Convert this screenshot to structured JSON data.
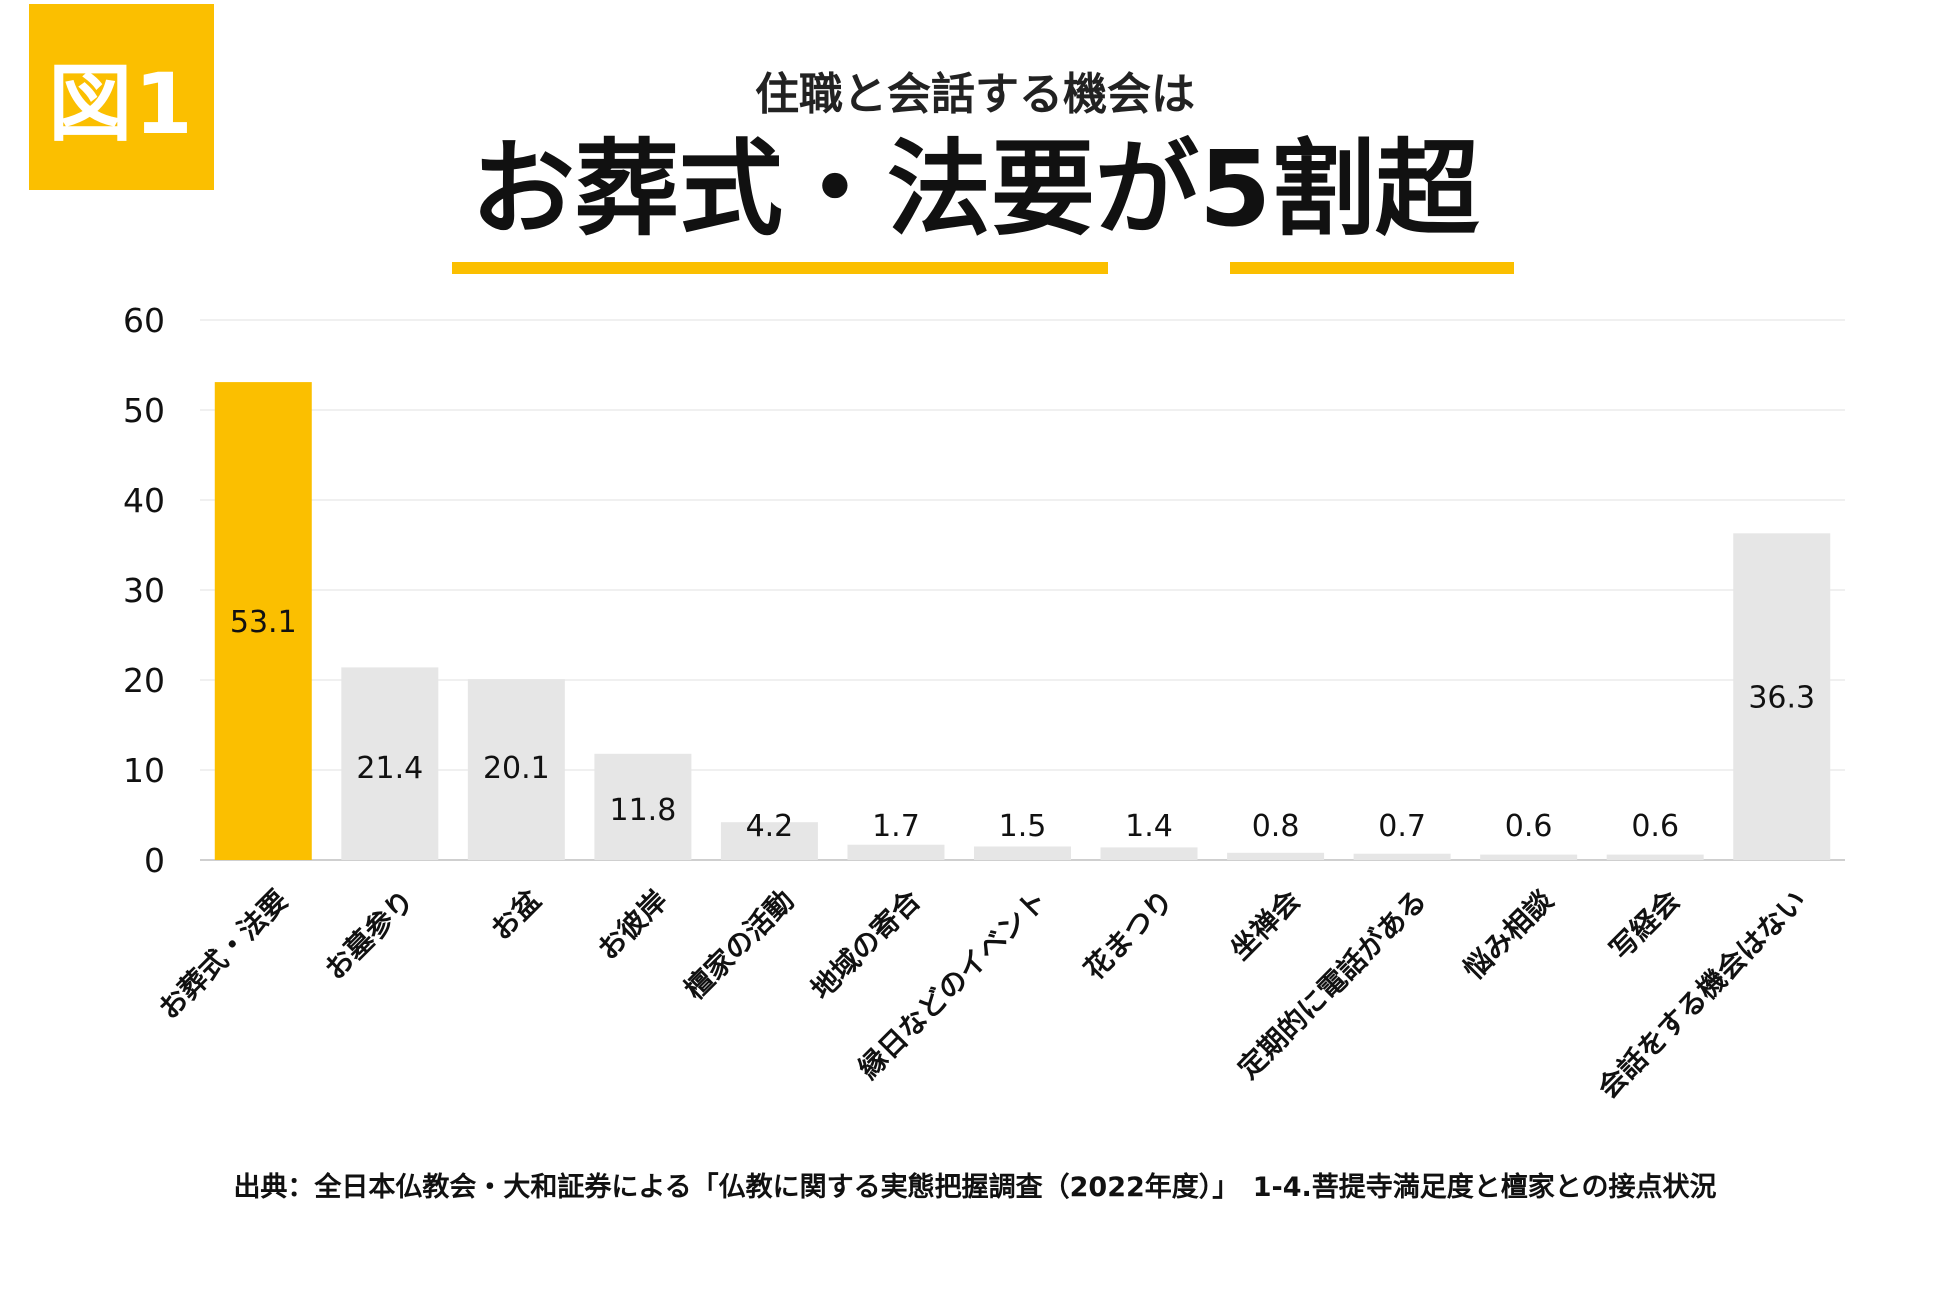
{
  "badge": "図1",
  "header": {
    "subtitle": "住職と会話する機会は",
    "title": "お葬式・法要が5割超"
  },
  "colors": {
    "accent": "#fbbf00",
    "bar_default": "#e6e6e6",
    "grid": "#ececec"
  },
  "chart_data": {
    "type": "bar",
    "categories": [
      "お葬式・法要",
      "お墓参り",
      "お盆",
      "お彼岸",
      "檀家の活動",
      "地域の寄合",
      "縁日などのイベント",
      "花まつり",
      "坐禅会",
      "定期的に電話がある",
      "悩み相談",
      "写経会",
      "会話をする機会はない"
    ],
    "values": [
      53.1,
      21.4,
      20.1,
      11.8,
      4.2,
      1.7,
      1.5,
      1.4,
      0.8,
      0.7,
      0.6,
      0.6,
      36.3
    ],
    "value_labels": [
      "53.1",
      "21.4",
      "20.1",
      "11.8",
      "4.2",
      "1.7",
      "1.5",
      "1.4",
      "0.8",
      "0.7",
      "0.6",
      "0.6",
      "36.3"
    ],
    "highlight_index": 0,
    "ylim": [
      0,
      60
    ],
    "yticks": [
      0,
      10,
      20,
      30,
      40,
      50,
      60
    ],
    "grid": true,
    "xlabel": "",
    "ylabel": ""
  },
  "source": "出典：全日本仏教会・大和証券による「仏教に関する実態把握調査（2022年度）」　1-4.菩提寺満足度と檀家との接点状況"
}
